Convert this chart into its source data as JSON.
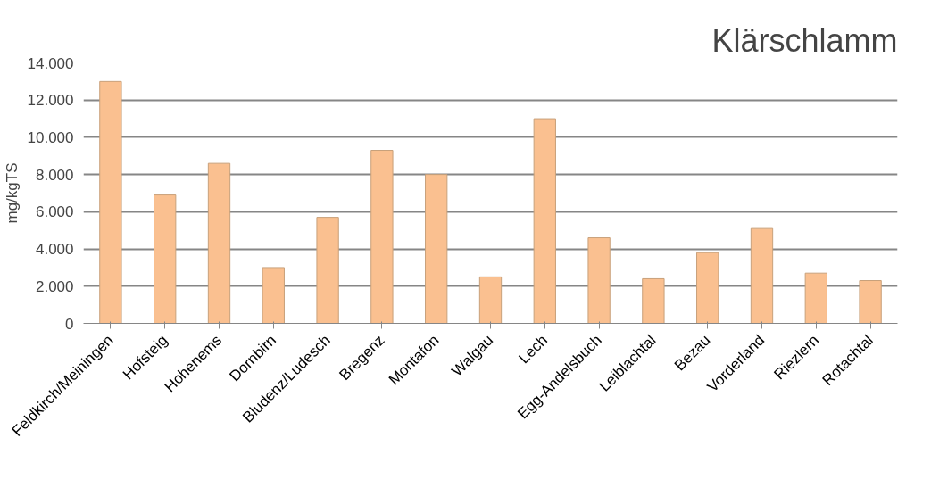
{
  "chart_data": {
    "type": "bar",
    "title": "Klärschlamm",
    "ylabel": "mg/kgTS",
    "categories": [
      "Feldkirch/Meiningen",
      "Hofsteig",
      "Hohenems",
      "Dornbirn",
      "Bludenz/Ludesch",
      "Bregenz",
      "Montafon",
      "Walgau",
      "Lech",
      "Egg-Andelsbuch",
      "Leiblachtal",
      "Bezau",
      "Vorderland",
      "Riezlern",
      "Rotachtal"
    ],
    "values": [
      13000,
      6900,
      8600,
      3000,
      5700,
      9300,
      8000,
      2500,
      11000,
      4600,
      2400,
      3800,
      5100,
      2700,
      2300
    ],
    "color": "#fac090",
    "ylim": [
      0,
      14000
    ],
    "yticks": [
      {
        "value": 0,
        "label": "0"
      },
      {
        "value": 2000,
        "label": "2.000"
      },
      {
        "value": 4000,
        "label": "4.000"
      },
      {
        "value": 6000,
        "label": "6.000"
      },
      {
        "value": 8000,
        "label": "8.000"
      },
      {
        "value": 10000,
        "label": "10.000"
      },
      {
        "value": 12000,
        "label": "12.000"
      },
      {
        "value": 14000,
        "label": "14.000"
      }
    ],
    "grid": "y"
  }
}
